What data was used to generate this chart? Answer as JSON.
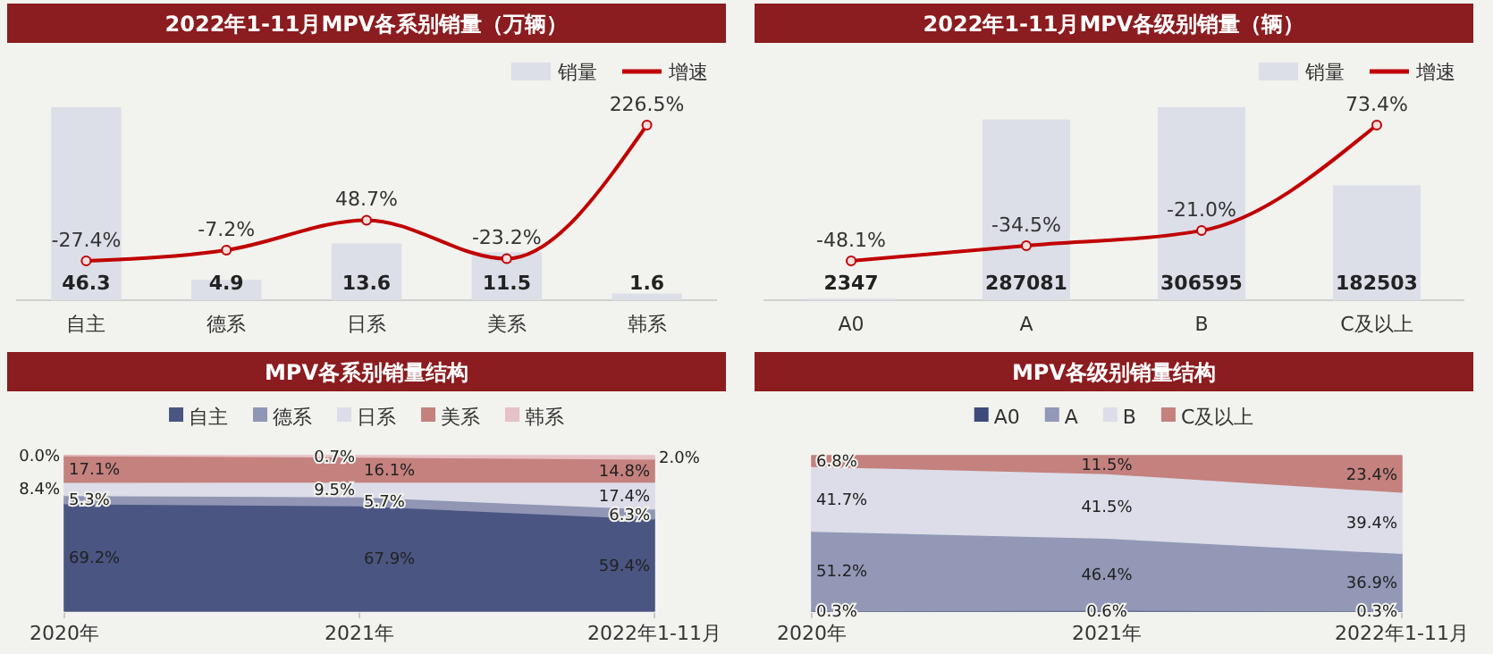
{
  "chart_data": [
    {
      "type": "bar",
      "title": "2022年1-11月MPV各系别销量（万辆）",
      "categories": [
        "自主",
        "德系",
        "日系",
        "美系",
        "韩系"
      ],
      "data_labels": true,
      "legend": "top right",
      "series": [
        {
          "name": "销量",
          "type": "bar",
          "color": "#dcdee8",
          "values": [
            46.3,
            4.9,
            13.6,
            11.5,
            1.6
          ]
        },
        {
          "name": "增速",
          "type": "line",
          "axis": "y2",
          "color": "#c00000",
          "marker": "circle",
          "values": [
            -27.4,
            -7.2,
            48.7,
            -23.2,
            226.5
          ],
          "value_labels": [
            "-27.4%",
            "-7.2%",
            "48.7%",
            "-23.2%",
            "226.5%"
          ]
        }
      ]
    },
    {
      "type": "bar",
      "title": "2022年1-11月MPV各级别销量（辆）",
      "categories": [
        "A0",
        "A",
        "B",
        "C及以上"
      ],
      "data_labels": true,
      "legend": "top right",
      "series": [
        {
          "name": "销量",
          "type": "bar",
          "color": "#dcdee8",
          "values": [
            2347,
            287081,
            306595,
            182503
          ]
        },
        {
          "name": "增速",
          "type": "line",
          "axis": "y2",
          "color": "#c00000",
          "marker": "circle",
          "values": [
            -48.1,
            -34.5,
            -21.0,
            73.4
          ],
          "value_labels": [
            "-48.1%",
            "-34.5%",
            "-21.0%",
            "73.4%"
          ]
        }
      ]
    },
    {
      "type": "area",
      "title": "MPV各系别销量结构",
      "categories": [
        "2020年",
        "2021年",
        "2022年1-11月"
      ],
      "stacked": true,
      "legend": "top",
      "series": [
        {
          "name": "自主",
          "color": "#4a5582",
          "values": [
            69.2,
            67.9,
            59.4
          ],
          "value_labels": [
            "69.2%",
            "67.9%",
            "59.4%"
          ]
        },
        {
          "name": "德系",
          "color": "#9096b4",
          "values": [
            5.3,
            5.7,
            6.3
          ],
          "value_labels": [
            "5.3%",
            "5.7%",
            "6.3%"
          ]
        },
        {
          "name": "日系",
          "color": "#dcdde8",
          "values": [
            8.4,
            9.5,
            17.4
          ],
          "value_labels": [
            "8.4%",
            "9.5%",
            "17.4%"
          ]
        },
        {
          "name": "美系",
          "color": "#c4817e",
          "values": [
            17.1,
            16.1,
            14.8
          ],
          "value_labels": [
            "17.1%",
            "16.1%",
            "14.8%"
          ]
        },
        {
          "name": "韩系",
          "color": "#e6c1c5",
          "values": [
            0.0,
            0.7,
            2.0
          ],
          "value_labels": [
            "0.0%",
            "0.7%",
            "2.0%"
          ]
        }
      ]
    },
    {
      "type": "area",
      "title": "MPV各级别销量结构",
      "categories": [
        "2020年",
        "2021年",
        "2022年1-11月"
      ],
      "stacked": true,
      "legend": "top",
      "series": [
        {
          "name": "A0",
          "color": "#3d4a7a",
          "values": [
            0.3,
            0.6,
            0.3
          ],
          "value_labels": [
            "0.3%",
            "0.6%",
            "0.3%"
          ]
        },
        {
          "name": "A",
          "color": "#9298b6",
          "values": [
            51.2,
            46.4,
            36.9
          ],
          "value_labels": [
            "51.2%",
            "46.4%",
            "36.9%"
          ]
        },
        {
          "name": "B",
          "color": "#dcdde8",
          "values": [
            41.7,
            41.5,
            39.4
          ],
          "value_labels": [
            "41.7%",
            "41.5%",
            "39.4%"
          ]
        },
        {
          "name": "C及以上",
          "color": "#c4817e",
          "values": [
            6.8,
            11.5,
            23.4
          ],
          "value_labels": [
            "6.8%",
            "11.5%",
            "23.4%"
          ]
        }
      ]
    }
  ]
}
